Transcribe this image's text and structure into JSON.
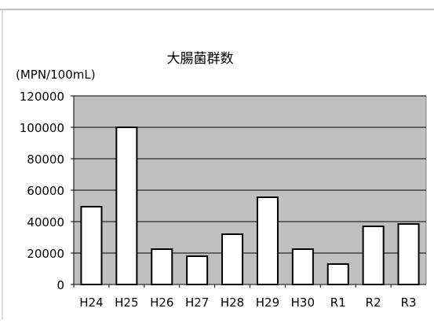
{
  "chart_data": {
    "type": "bar",
    "title": "大腸菌群数",
    "ylabel": "(MPN/100mL)",
    "xlabel": "",
    "categories": [
      "H24",
      "H25",
      "H26",
      "H27",
      "H28",
      "H29",
      "H30",
      "R1",
      "R2",
      "R3"
    ],
    "values": [
      49500,
      100000,
      22500,
      18000,
      32000,
      55500,
      22500,
      13000,
      37000,
      38500
    ],
    "ylim": [
      0,
      120000
    ],
    "yticks": [
      "0",
      "20000",
      "40000",
      "60000",
      "80000",
      "100000",
      "120000"
    ],
    "grid": true,
    "legend": "none",
    "colors": {
      "plot_background": "#c0c0c0",
      "bar_fill": "#ffffff",
      "bar_stroke": "#000000",
      "gridline": "#000000",
      "frame": "#808080"
    }
  }
}
